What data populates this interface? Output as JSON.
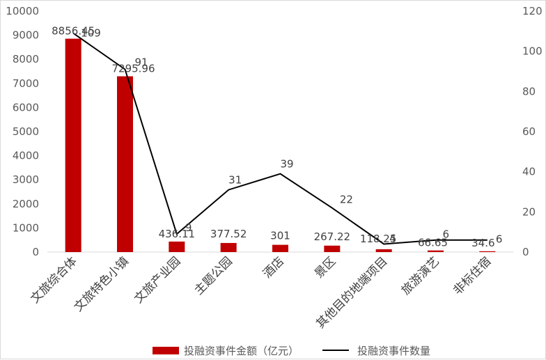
{
  "chart_data": {
    "type": "bar",
    "categories": [
      "文旅综合体",
      "文旅特色小镇",
      "文旅产业园",
      "主题公园",
      "酒店",
      "景区",
      "其他目的地端项目",
      "旅游演艺",
      "非标住宿"
    ],
    "series": [
      {
        "name": "投融资事件金额（亿元）",
        "type": "bar",
        "axis": "left",
        "values": [
          8856.45,
          7295.96,
          436.11,
          377.52,
          301,
          267.22,
          118.25,
          66.65,
          34.6
        ],
        "labels": [
          "8856.45",
          "7295.96",
          "436.11",
          "377.52",
          "301",
          "267.22",
          "118.25",
          "66.65",
          "34.6"
        ]
      },
      {
        "name": "投融资事件数量",
        "type": "line",
        "axis": "right",
        "values": [
          109,
          91,
          9,
          31,
          39,
          22,
          4,
          6,
          6
        ],
        "labels": [
          "109",
          "91",
          "9",
          "31",
          "39",
          "22",
          "4",
          "6",
          "6"
        ]
      }
    ],
    "left_axis": {
      "min": 0,
      "max": 10000,
      "step": 1000,
      "ticks": [
        "0",
        "1000",
        "2000",
        "3000",
        "4000",
        "5000",
        "6000",
        "7000",
        "8000",
        "9000",
        "10000"
      ]
    },
    "right_axis": {
      "min": 0,
      "max": 120,
      "step": 20,
      "ticks": [
        "0",
        "20",
        "40",
        "60",
        "80",
        "100",
        "120"
      ]
    },
    "grid": false,
    "legend": "bottom",
    "colors": {
      "bar": "#c00000",
      "line": "#000000",
      "text": "#595959"
    }
  }
}
